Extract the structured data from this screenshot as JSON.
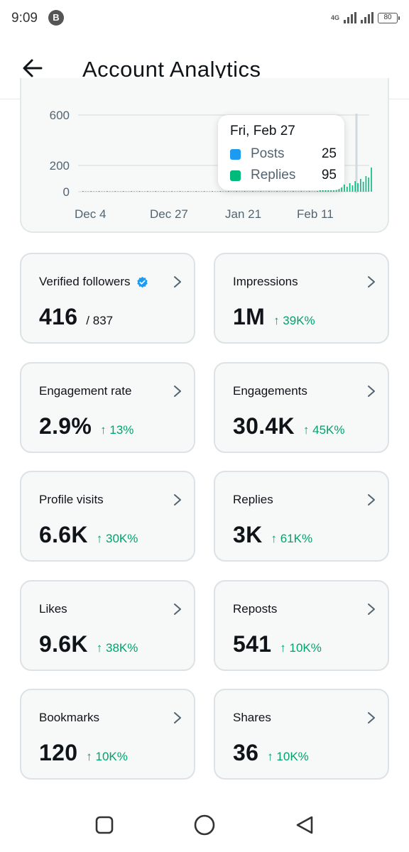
{
  "status_bar": {
    "time": "9:09",
    "app_icon": "B",
    "network": "4G",
    "battery": "80"
  },
  "header": {
    "title": "Account Analytics"
  },
  "chart_data": {
    "type": "bar",
    "y_ticks": [
      "600",
      "200",
      "0"
    ],
    "x_ticks": [
      "Dec 4",
      "Dec 27",
      "Jan 21",
      "Feb 11"
    ],
    "colors": {
      "posts": "#1d9bf0",
      "replies": "#00ba7c"
    },
    "tooltip": {
      "date": "Fri, Feb 27",
      "series": [
        {
          "label": "Posts",
          "value": "25"
        },
        {
          "label": "Replies",
          "value": "95"
        }
      ]
    }
  },
  "stats": [
    {
      "label": "Verified followers",
      "value": "416",
      "sub": "/ 837",
      "change": ""
    },
    {
      "label": "Impressions",
      "value": "1M",
      "sub": "",
      "change": "↑ 39K%"
    },
    {
      "label": "Engagement rate",
      "value": "2.9%",
      "sub": "",
      "change": "↑ 13%"
    },
    {
      "label": "Engagements",
      "value": "30.4K",
      "sub": "",
      "change": "↑ 45K%"
    },
    {
      "label": "Profile visits",
      "value": "6.6K",
      "sub": "",
      "change": "↑ 30K%"
    },
    {
      "label": "Replies",
      "value": "3K",
      "sub": "",
      "change": "↑ 61K%"
    },
    {
      "label": "Likes",
      "value": "9.6K",
      "sub": "",
      "change": "↑ 38K%"
    },
    {
      "label": "Reposts",
      "value": "541",
      "sub": "",
      "change": "↑ 10K%"
    },
    {
      "label": "Bookmarks",
      "value": "120",
      "sub": "",
      "change": "↑ 10K%"
    },
    {
      "label": "Shares",
      "value": "36",
      "sub": "",
      "change": "↑ 10K%"
    }
  ]
}
